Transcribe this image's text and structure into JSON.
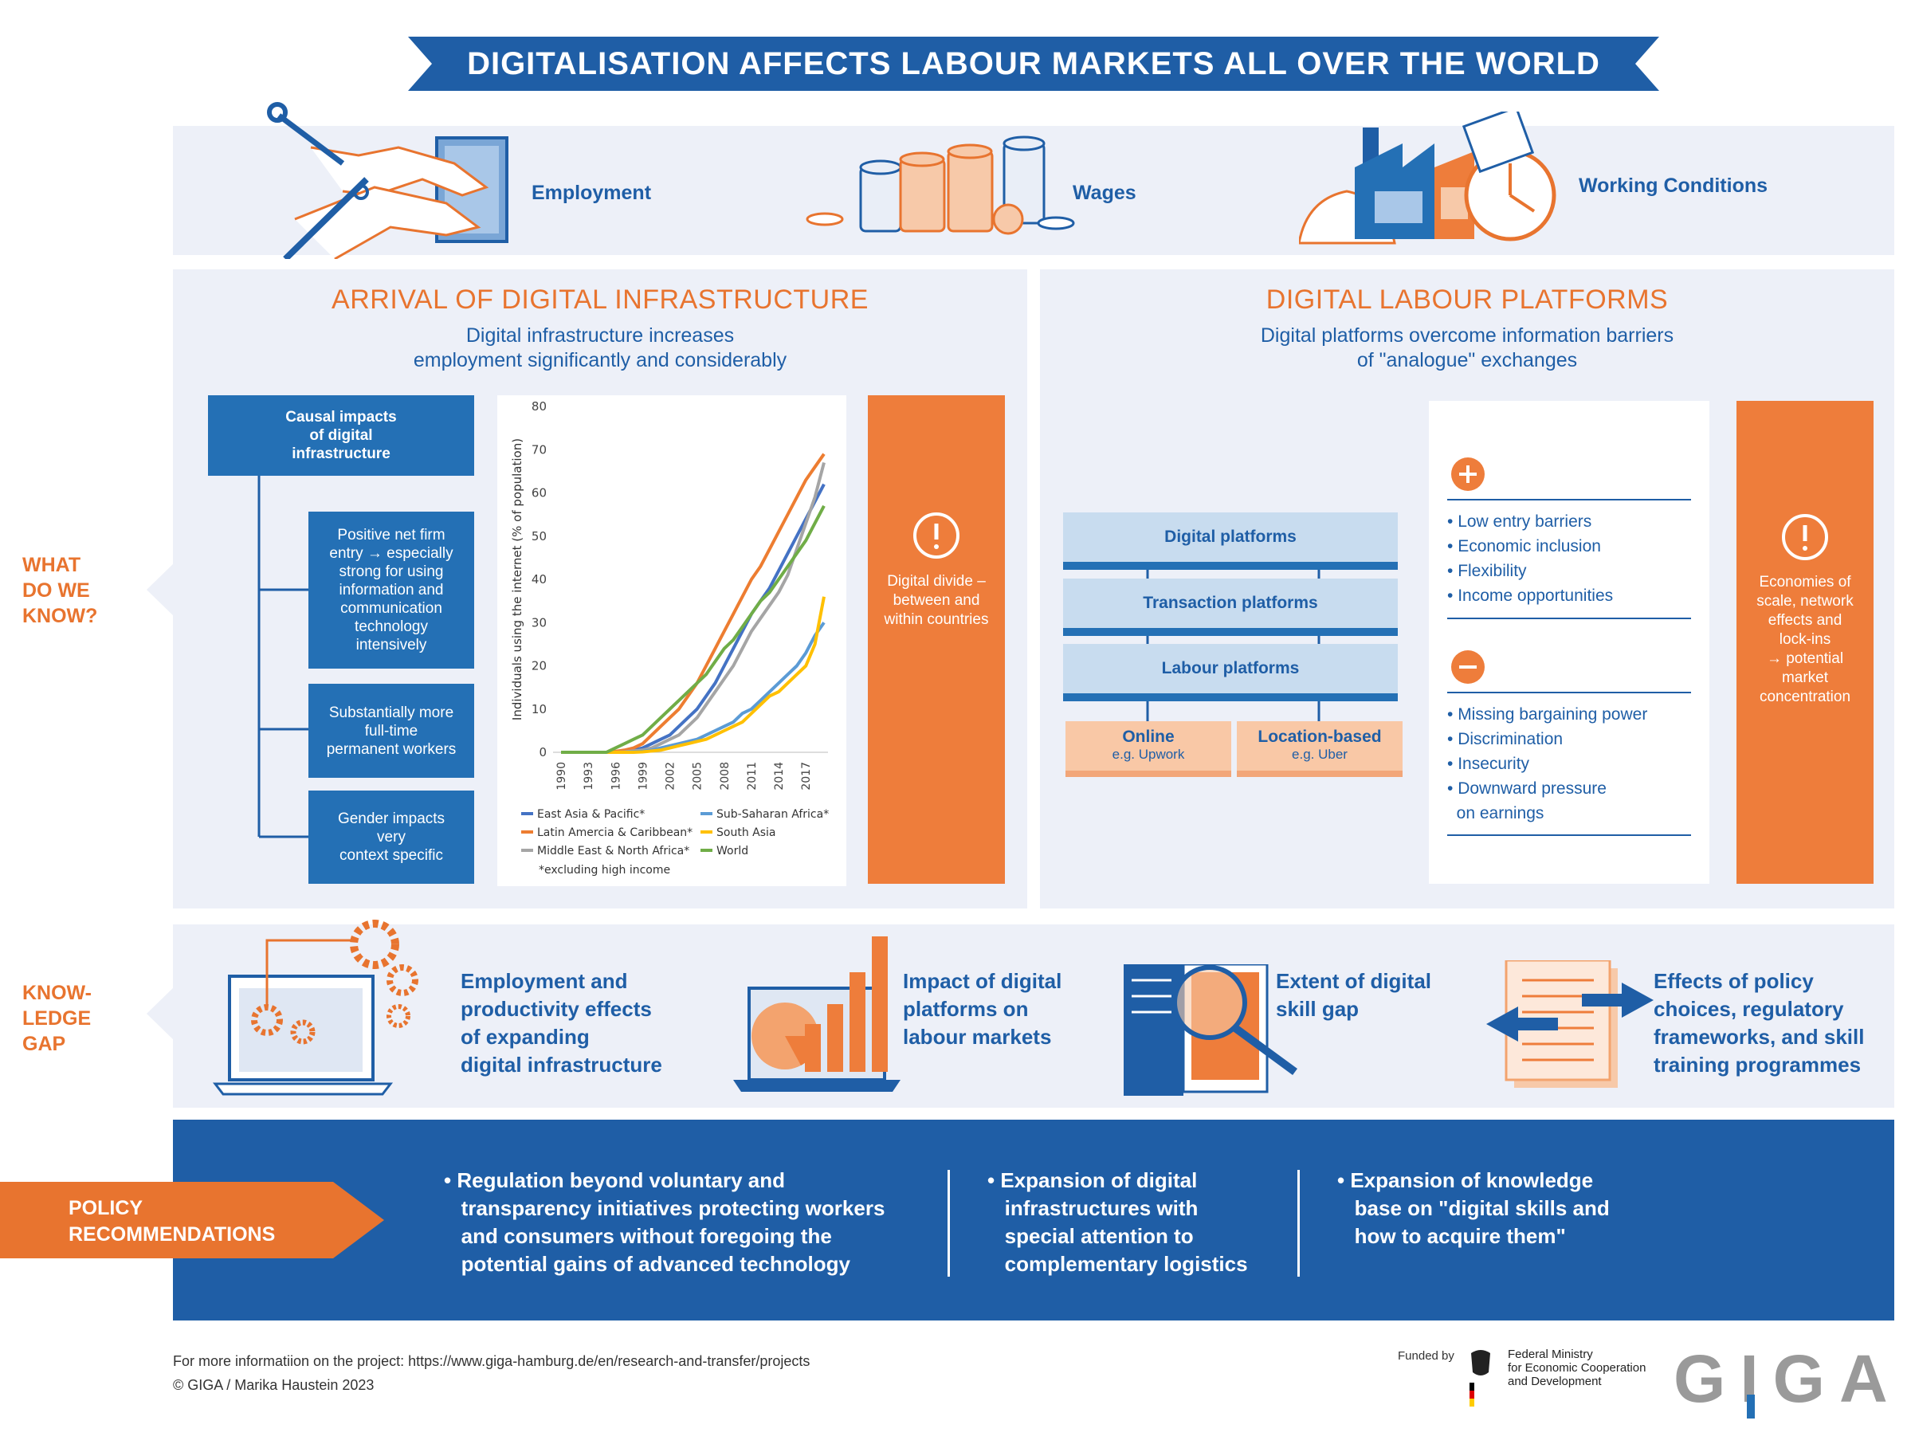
{
  "title": "DIGITALISATION AFFECTS LABOUR MARKETS ALL OVER THE WORLD",
  "top_icons": {
    "employment": "Employment",
    "wages": "Wages",
    "working_conditions": "Working Conditions"
  },
  "left_section": {
    "title": "ARRIVAL OF DIGITAL INFRASTRUCTURE",
    "subtitle_line1": "Digital infrastructure increases",
    "subtitle_line2": "employment significantly and considerably",
    "causal_head": [
      "Causal impacts",
      "of digital",
      "infrastructure"
    ],
    "impact1": [
      "Positive net firm",
      "entry → especially",
      "strong for using",
      "information and",
      "communication",
      "technology",
      "intensively"
    ],
    "impact2": [
      "Substantially more",
      "full-time",
      "permanent workers"
    ],
    "impact3": [
      "Gender impacts",
      "very",
      "context specific"
    ],
    "alert": [
      "Digital divide –",
      "between and",
      "within countries"
    ]
  },
  "right_section": {
    "title": "DIGITAL LABOUR PLATFORMS",
    "subtitle_line1": "Digital platforms overcome information barriers",
    "subtitle_line2": "of \"analogue\" exchanges",
    "platforms": [
      "Digital platforms",
      "Transaction platforms",
      "Labour platforms"
    ],
    "online": "Online",
    "online_eg": "e.g. Upwork",
    "location": "Location-based",
    "location_eg": "e.g. Uber",
    "pros": [
      "Low entry barriers",
      "Economic inclusion",
      "Flexibility",
      "Income opportunities"
    ],
    "cons": [
      "Missing bargaining power",
      "Discrimination",
      "Insecurity",
      "Downward pressure",
      "on earnings"
    ],
    "alert": [
      "Economies of",
      "scale, network",
      "effects and",
      "lock-ins",
      "→ potential",
      "market",
      "concentration"
    ]
  },
  "side_labels": {
    "what": [
      "WHAT",
      "DO WE",
      "KNOW?"
    ],
    "gap": [
      "KNOW-",
      "LEDGE",
      "GAP"
    ]
  },
  "knowledge_gap": [
    [
      "Employment and",
      "productivity effects",
      "of expanding",
      "digital infrastructure"
    ],
    [
      "Impact of digital",
      "platforms on",
      "labour markets"
    ],
    [
      "Extent of digital",
      "skill gap"
    ],
    [
      "Effects of policy",
      "choices, regulatory",
      "frameworks, and skill",
      "training programmes"
    ]
  ],
  "policy": {
    "label": [
      "POLICY",
      "RECOMMENDATIONS"
    ],
    "items": [
      [
        "Regulation beyond voluntary and",
        "transparency initiatives protecting workers",
        "and consumers without foregoing the",
        "potential gains of advanced technology"
      ],
      [
        "Expansion of digital",
        "infrastructures with",
        "special attention to",
        "complementary logistics"
      ],
      [
        "Expansion of knowledge",
        "base on \"digital skills and",
        "how to acquire them\""
      ]
    ]
  },
  "footer": {
    "line1": "For more informatiion on the project: https://www.giga-hamburg.de/en/research-and-transfer/projects",
    "line2": "© GIGA / Marika Haustein 2023",
    "funded_by": "Funded by",
    "ministry": [
      "Federal Ministry",
      "for Economic Cooperation",
      "and Development"
    ],
    "logo": "GIGA"
  },
  "chart_data": {
    "type": "line",
    "ylabel": "Individuals using the internet (% of population)",
    "xlabel": "",
    "ylim": [
      0,
      80
    ],
    "yticks": [
      0,
      10,
      20,
      30,
      40,
      50,
      60,
      70,
      80
    ],
    "xticks": [
      "1990",
      "1993",
      "1996",
      "1999",
      "2002",
      "2005",
      "2008",
      "2011",
      "2014",
      "2017"
    ],
    "x": [
      1990,
      1991,
      1992,
      1993,
      1994,
      1995,
      1996,
      1997,
      1998,
      1999,
      2000,
      2001,
      2002,
      2003,
      2004,
      2005,
      2006,
      2007,
      2008,
      2009,
      2010,
      2011,
      2012,
      2013,
      2014,
      2015,
      2016,
      2017,
      2018,
      2019
    ],
    "series": [
      {
        "name": "East Asia & Pacific*",
        "color": "#4472c4",
        "values": [
          0,
          0,
          0,
          0,
          0,
          0,
          0,
          0.2,
          0.5,
          1,
          2,
          3,
          4,
          6,
          8,
          10,
          13,
          16,
          20,
          24,
          28,
          32,
          35,
          38,
          42,
          46,
          50,
          54,
          58,
          62
        ]
      },
      {
        "name": "Latin Amercia & Caribbean*",
        "color": "#ed7d31",
        "values": [
          0,
          0,
          0,
          0,
          0,
          0,
          0.2,
          0.5,
          1,
          2,
          4,
          6,
          8,
          10,
          13,
          16,
          20,
          24,
          28,
          32,
          36,
          40,
          43,
          47,
          51,
          55,
          59,
          63,
          66,
          69
        ]
      },
      {
        "name": "Middle East & North Africa*",
        "color": "#a5a5a5",
        "values": [
          0,
          0,
          0,
          0,
          0,
          0,
          0,
          0.1,
          0.3,
          0.5,
          1,
          2,
          3,
          4,
          6,
          8,
          11,
          14,
          17,
          20,
          24,
          28,
          31,
          34,
          37,
          41,
          47,
          53,
          59,
          67
        ]
      },
      {
        "name": "Sub-Saharan Africa*",
        "color": "#5b9bd5",
        "values": [
          0,
          0,
          0,
          0,
          0,
          0,
          0,
          0,
          0.1,
          0.2,
          0.5,
          1,
          1.5,
          2,
          2.5,
          3,
          4,
          5,
          6,
          7,
          9,
          10,
          12,
          14,
          16,
          18,
          20,
          23,
          27,
          30
        ]
      },
      {
        "name": "South Asia",
        "color": "#ffc000",
        "values": [
          0,
          0,
          0,
          0,
          0,
          0,
          0,
          0,
          0,
          0.1,
          0.3,
          0.5,
          1,
          1.5,
          2,
          2.5,
          3,
          4,
          5,
          6,
          7,
          9,
          11,
          13,
          14,
          16,
          18,
          20,
          25,
          36
        ]
      },
      {
        "name": "World",
        "color": "#70ad47",
        "values": [
          0,
          0,
          0,
          0,
          0,
          0,
          1,
          2,
          3,
          4,
          6,
          8,
          10,
          12,
          14,
          16,
          18,
          21,
          24,
          26,
          29,
          32,
          35,
          37,
          40,
          43,
          46,
          49,
          53,
          57
        ]
      }
    ],
    "legend": [
      "East Asia & Pacific*",
      "Sub-Saharan Africa*",
      "Latin Amercia & Caribbean*",
      "South Asia",
      "Middle East & North Africa*",
      "World"
    ],
    "note": "*excluding high income"
  }
}
